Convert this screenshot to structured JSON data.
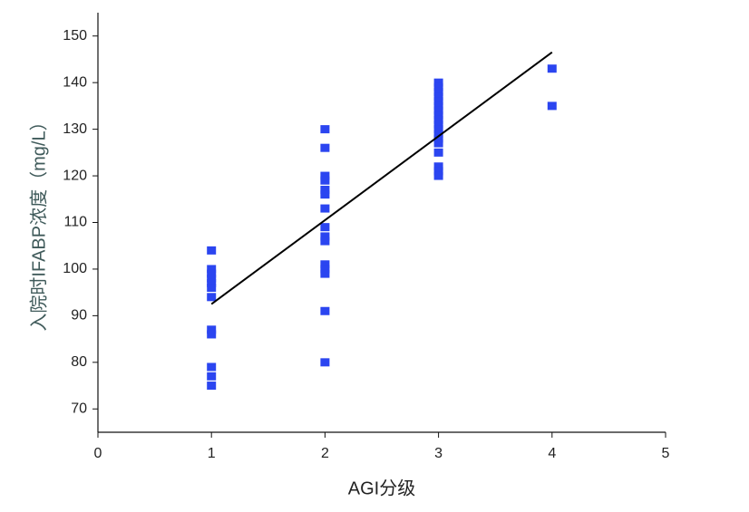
{
  "chart_data": {
    "type": "scatter",
    "xlabel": "AGI分级",
    "ylabel": "入院时IFABP浓度（mg/L）",
    "xlim": [
      0,
      5
    ],
    "xticks": [
      0,
      1,
      2,
      3,
      4,
      5
    ],
    "ylim": [
      65,
      155
    ],
    "yticks": [
      70,
      80,
      90,
      100,
      110,
      120,
      130,
      140,
      150
    ],
    "series": [
      {
        "color": "#2b45f0",
        "x": [
          1,
          1,
          1,
          1,
          1,
          1,
          1,
          1,
          1,
          1,
          1,
          1,
          2,
          2,
          2,
          2,
          2,
          2,
          2,
          2,
          2,
          2,
          2,
          2,
          2,
          2,
          2,
          3,
          3,
          3,
          3,
          3,
          3,
          3,
          3,
          3,
          3,
          3,
          3,
          3,
          3,
          3,
          3,
          3,
          3,
          4,
          4
        ],
        "y": [
          104,
          100,
          99,
          98,
          97,
          96,
          94,
          87,
          86,
          79,
          77,
          75,
          130,
          126,
          120,
          119,
          117,
          116,
          113,
          109,
          107,
          106,
          101,
          100,
          99,
          91,
          80,
          140,
          139,
          138,
          137,
          136,
          135,
          134,
          133,
          132,
          131,
          130,
          129,
          128,
          127,
          125,
          122,
          121,
          120,
          143,
          135
        ]
      }
    ],
    "fit_line": {
      "color": "#000000",
      "x": [
        1,
        4
      ],
      "y": [
        92.5,
        146.5
      ]
    }
  }
}
